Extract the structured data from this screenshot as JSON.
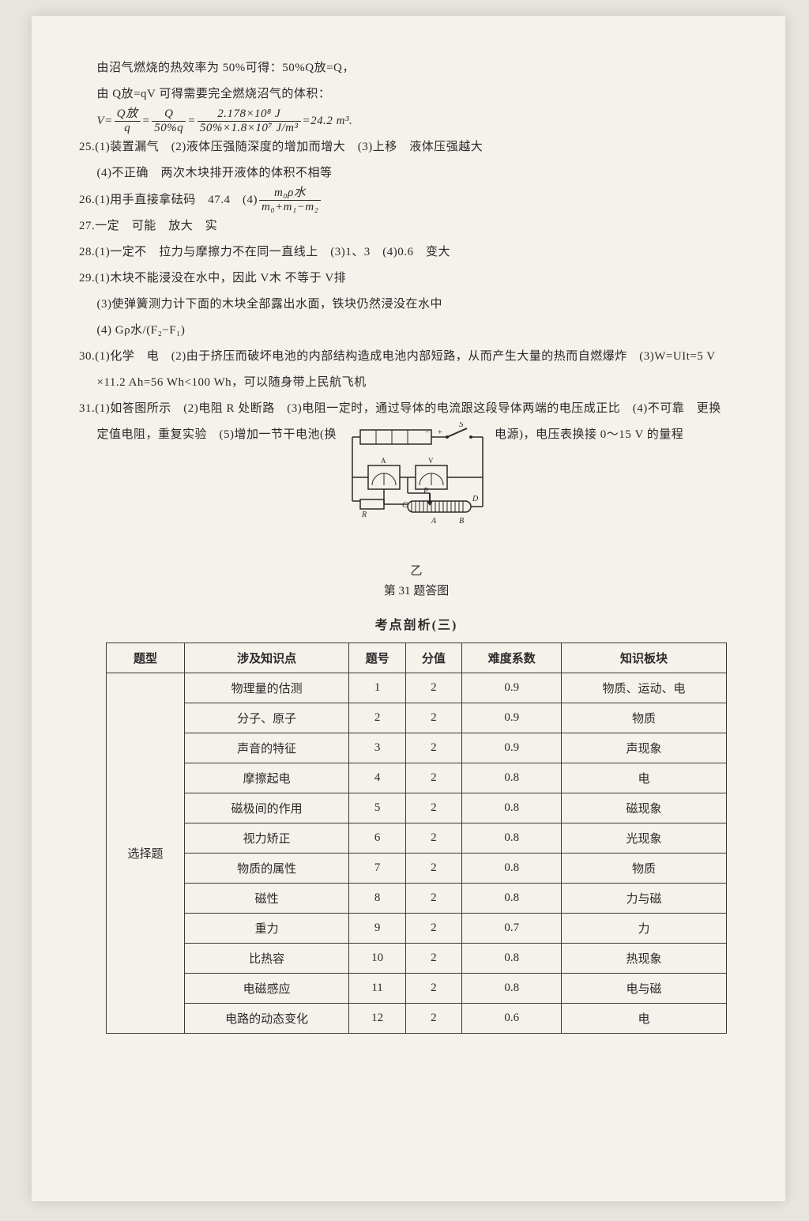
{
  "body": {
    "p1": "由沼气燃烧的热效率为 50%可得：50%Q放=Q，",
    "p2": "由 Q放=qV 可得需要完全燃烧沼气的体积：",
    "eq_prefix": "V=",
    "eq_frac1_num": "Q放",
    "eq_frac1_den": "q",
    "eq_eq1": "=",
    "eq_frac2_num": "Q",
    "eq_frac2_den": "50%q",
    "eq_eq2": "=",
    "eq_frac3_num": "2.178×10⁸ J",
    "eq_frac3_den": "50%×1.8×10⁷ J/m³",
    "eq_suffix": "=24.2 m³.",
    "q25a": "25.(1)装置漏气　(2)液体压强随深度的增加而增大　(3)上移　液体压强越大",
    "q25b": "(4)不正确　两次木块排开液体的体积不相等",
    "q26": "26.(1)用手直接拿砝码　47.4　(4)",
    "q26_frac_num": "m₀ρ水",
    "q26_frac_den": "m₀+m₁−m₂",
    "q27": "27.一定　可能　放大　实",
    "q28": "28.(1)一定不　拉力与摩擦力不在同一直线上　(3)1、3　(4)0.6　变大",
    "q29a": "29.(1)木块不能浸没在水中，因此 V木 不等于 V排",
    "q29b": "(3)使弹簧测力计下面的木块全部露出水面，铁块仍然浸没在水中",
    "q29c": "(4) Gρ水/(F₂−F₁)",
    "q30a": "30.(1)化学　电　(2)由于挤压而破坏电池的内部结构造成电池内部短路，从而产生大量的热而自燃爆炸　(3)W=UIt=5 V",
    "q30b": "×11.2 Ah=56 Wh<100 Wh，可以随身带上民航飞机",
    "q31a": "31.(1)如答图所示　(2)电阻 R 处断路　(3)电阻一定时，通过导体的电流跟这段导体两端的电压成正比　(4)不可靠　更换",
    "q31b_left": "定值电阻，重复实验　(5)增加一节干电池(换",
    "q31b_right": "电源)，电压表换接 0～15 V 的量程"
  },
  "figure": {
    "label_yi": "乙",
    "caption": "第 31 题答图",
    "labels": {
      "S": "S",
      "A": "A",
      "B": "B",
      "C": "C",
      "D": "D",
      "P": "P",
      "R": "R"
    }
  },
  "table": {
    "title": "考点剖析(三)",
    "headers": [
      "题型",
      "涉及知识点",
      "题号",
      "分值",
      "难度系数",
      "知识板块"
    ],
    "rowspan_label": "选择题",
    "rows": [
      {
        "topic": "物理量的估测",
        "num": "1",
        "score": "2",
        "diff": "0.9",
        "block": "物质、运动、电"
      },
      {
        "topic": "分子、原子",
        "num": "2",
        "score": "2",
        "diff": "0.9",
        "block": "物质"
      },
      {
        "topic": "声音的特征",
        "num": "3",
        "score": "2",
        "diff": "0.9",
        "block": "声现象"
      },
      {
        "topic": "摩擦起电",
        "num": "4",
        "score": "2",
        "diff": "0.8",
        "block": "电"
      },
      {
        "topic": "磁极间的作用",
        "num": "5",
        "score": "2",
        "diff": "0.8",
        "block": "磁现象"
      },
      {
        "topic": "视力矫正",
        "num": "6",
        "score": "2",
        "diff": "0.8",
        "block": "光现象"
      },
      {
        "topic": "物质的属性",
        "num": "7",
        "score": "2",
        "diff": "0.8",
        "block": "物质"
      },
      {
        "topic": "磁性",
        "num": "8",
        "score": "2",
        "diff": "0.8",
        "block": "力与磁"
      },
      {
        "topic": "重力",
        "num": "9",
        "score": "2",
        "diff": "0.7",
        "block": "力"
      },
      {
        "topic": "比热容",
        "num": "10",
        "score": "2",
        "diff": "0.8",
        "block": "热现象"
      },
      {
        "topic": "电磁感应",
        "num": "11",
        "score": "2",
        "diff": "0.8",
        "block": "电与磁"
      },
      {
        "topic": "电路的动态变化",
        "num": "12",
        "score": "2",
        "diff": "0.6",
        "block": "电"
      }
    ]
  },
  "style": {
    "page_bg": "#f5f1eb",
    "text_color": "#2a2a2a",
    "border_color": "#3a3a3a",
    "font_size_body": 15,
    "font_size_title": 16,
    "table_width_pct": 92
  }
}
